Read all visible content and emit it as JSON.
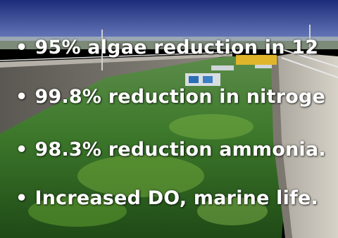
{
  "bullets": [
    {
      "marker": "•",
      "text": "95% algae reduction in 12"
    },
    {
      "marker": "•",
      "text": "99.8% reduction in nitroge"
    },
    {
      "marker": "•",
      "text": "98.3% reduction ammonia."
    },
    {
      "marker": "•",
      "text": "Increased DO, marine life."
    }
  ],
  "colors": {
    "text": "#ffffff",
    "sky": "#2b3a8c",
    "water": "#3f7a2a",
    "concrete": "#8e8a82"
  }
}
